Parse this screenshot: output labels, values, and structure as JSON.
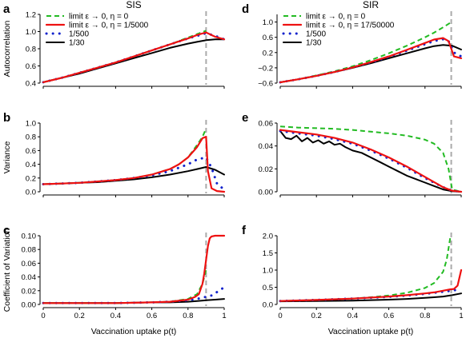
{
  "column_titles": [
    "SIS",
    "SIR"
  ],
  "xlabel": "Vaccination uptake p(t)",
  "colors": {
    "limit": "#22bb22",
    "eta_small": "#ee1111",
    "eta_500": "#1122cc",
    "eta_30": "#000000",
    "vline": "#aaaaaa"
  },
  "chart_data": [
    {
      "panel": "a",
      "type": "line",
      "xlim": [
        0,
        1
      ],
      "ylim": [
        0.4,
        1.2
      ],
      "ylabel": "Autocorrelation",
      "xticks": [
        0,
        0.2,
        0.4,
        0.6,
        0.8,
        1
      ],
      "xtick_labels": [
        "",
        "",
        "",
        "",
        "",
        ""
      ],
      "yticks": [
        0.4,
        0.6,
        0.8,
        1.0,
        1.2
      ],
      "ytick_labels": [
        "0.4",
        "0.6",
        "0.8",
        "1.0",
        "1.2"
      ],
      "vline": 0.9,
      "legend": {
        "position": "top-left",
        "labels": [
          "limit ε → 0, η = 0",
          "limit ε → 0, η = 1/5000",
          "1/500",
          "1/30"
        ]
      },
      "series": [
        {
          "name": "limit ε → 0, η = 0",
          "style": "limit",
          "x": [
            0,
            0.1,
            0.2,
            0.3,
            0.4,
            0.5,
            0.6,
            0.7,
            0.8,
            0.85,
            0.9
          ],
          "y": [
            0.41,
            0.46,
            0.52,
            0.58,
            0.64,
            0.71,
            0.78,
            0.85,
            0.93,
            0.97,
            1.01
          ]
        },
        {
          "name": "limit ε → 0, η = 1/5000",
          "style": "eta_small",
          "x": [
            0,
            0.1,
            0.2,
            0.3,
            0.4,
            0.5,
            0.6,
            0.7,
            0.8,
            0.85,
            0.9,
            0.95,
            1
          ],
          "y": [
            0.41,
            0.46,
            0.52,
            0.58,
            0.64,
            0.71,
            0.78,
            0.85,
            0.92,
            0.96,
            0.99,
            0.94,
            0.91
          ]
        },
        {
          "name": "1/500",
          "style": "eta_500",
          "x": [
            0,
            0.1,
            0.2,
            0.3,
            0.4,
            0.5,
            0.6,
            0.7,
            0.8,
            0.85,
            0.9,
            0.95,
            1
          ],
          "y": [
            0.41,
            0.46,
            0.52,
            0.58,
            0.64,
            0.71,
            0.78,
            0.85,
            0.92,
            0.95,
            0.98,
            0.95,
            0.91
          ]
        },
        {
          "name": "1/30",
          "style": "eta_30",
          "x": [
            0,
            0.1,
            0.2,
            0.3,
            0.4,
            0.5,
            0.6,
            0.7,
            0.8,
            0.85,
            0.9,
            0.95,
            1
          ],
          "y": [
            0.41,
            0.46,
            0.51,
            0.57,
            0.63,
            0.69,
            0.75,
            0.81,
            0.86,
            0.88,
            0.9,
            0.91,
            0.91
          ]
        }
      ]
    },
    {
      "panel": "d",
      "type": "line",
      "xlim": [
        0,
        1
      ],
      "ylim": [
        -0.6,
        1.2
      ],
      "ylabel": "",
      "xticks": [
        0,
        0.2,
        0.4,
        0.6,
        0.8,
        1
      ],
      "xtick_labels": [
        "",
        "",
        "",
        "",
        "",
        ""
      ],
      "yticks": [
        -0.6,
        -0.2,
        0.2,
        0.6,
        1.0
      ],
      "ytick_labels": [
        "−0.6",
        "−0.2",
        "0.2",
        "0.6",
        "1.0"
      ],
      "vline": 0.945,
      "legend": {
        "position": "top-left",
        "labels": [
          "limit ε → 0, η = 0",
          "limit ε → 0, η = 17/50000",
          "1/500",
          "1/30"
        ]
      },
      "series": [
        {
          "name": "limit ε → 0, η = 0",
          "style": "limit",
          "x": [
            0,
            0.1,
            0.2,
            0.3,
            0.4,
            0.5,
            0.6,
            0.7,
            0.8,
            0.85,
            0.9,
            0.94
          ],
          "y": [
            -0.58,
            -0.5,
            -0.4,
            -0.29,
            -0.16,
            0.0,
            0.18,
            0.38,
            0.6,
            0.72,
            0.86,
            0.98
          ]
        },
        {
          "name": "limit ε → 0, η = 17/50000",
          "style": "eta_small",
          "x": [
            0,
            0.1,
            0.2,
            0.3,
            0.4,
            0.5,
            0.6,
            0.7,
            0.8,
            0.85,
            0.9,
            0.93,
            0.96,
            1
          ],
          "y": [
            -0.58,
            -0.5,
            -0.41,
            -0.31,
            -0.19,
            -0.05,
            0.1,
            0.27,
            0.45,
            0.54,
            0.58,
            0.5,
            0.1,
            0.05
          ]
        },
        {
          "name": "1/500",
          "style": "eta_500",
          "x": [
            0,
            0.1,
            0.2,
            0.3,
            0.4,
            0.5,
            0.6,
            0.7,
            0.8,
            0.85,
            0.9,
            0.93,
            0.96,
            1
          ],
          "y": [
            -0.58,
            -0.5,
            -0.41,
            -0.31,
            -0.19,
            -0.06,
            0.09,
            0.25,
            0.42,
            0.5,
            0.55,
            0.5,
            0.2,
            0.1
          ]
        },
        {
          "name": "1/30",
          "style": "eta_30",
          "x": [
            0,
            0.1,
            0.2,
            0.3,
            0.4,
            0.5,
            0.6,
            0.7,
            0.8,
            0.85,
            0.9,
            0.95,
            1
          ],
          "y": [
            -0.58,
            -0.5,
            -0.41,
            -0.31,
            -0.2,
            -0.08,
            0.05,
            0.18,
            0.31,
            0.37,
            0.4,
            0.38,
            0.28
          ]
        }
      ]
    },
    {
      "panel": "b",
      "type": "line",
      "xlim": [
        0,
        1
      ],
      "ylim": [
        0,
        1
      ],
      "ylabel": "Variance",
      "xticks": [
        0,
        0.2,
        0.4,
        0.6,
        0.8,
        1
      ],
      "xtick_labels": [
        "",
        "",
        "",
        "",
        "",
        ""
      ],
      "yticks": [
        0,
        0.2,
        0.4,
        0.6,
        0.8,
        1.0
      ],
      "ytick_labels": [
        "0.0",
        "0.2",
        "0.4",
        "0.6",
        "0.8",
        "1.0"
      ],
      "vline": 0.9,
      "series": [
        {
          "name": "limit ε → 0, η = 0",
          "style": "limit",
          "x": [
            0,
            0.1,
            0.2,
            0.3,
            0.4,
            0.5,
            0.6,
            0.7,
            0.75,
            0.8,
            0.85,
            0.88,
            0.9
          ],
          "y": [
            0.11,
            0.12,
            0.13,
            0.15,
            0.17,
            0.2,
            0.25,
            0.33,
            0.4,
            0.5,
            0.68,
            0.8,
            0.92
          ]
        },
        {
          "name": "limit ε → 0, η = 1/5000",
          "style": "eta_small",
          "x": [
            0,
            0.1,
            0.2,
            0.3,
            0.4,
            0.5,
            0.6,
            0.7,
            0.75,
            0.8,
            0.85,
            0.88,
            0.9,
            0.91,
            0.93,
            0.96,
            1
          ],
          "y": [
            0.11,
            0.12,
            0.13,
            0.15,
            0.17,
            0.2,
            0.25,
            0.33,
            0.4,
            0.5,
            0.65,
            0.78,
            0.8,
            0.3,
            0.05,
            0.01,
            0.0
          ]
        },
        {
          "name": "1/500",
          "style": "eta_500",
          "x": [
            0,
            0.1,
            0.2,
            0.3,
            0.4,
            0.5,
            0.6,
            0.7,
            0.8,
            0.85,
            0.9,
            0.93,
            0.96,
            1
          ],
          "y": [
            0.11,
            0.12,
            0.13,
            0.15,
            0.17,
            0.2,
            0.24,
            0.3,
            0.4,
            0.47,
            0.5,
            0.35,
            0.12,
            0.03
          ]
        },
        {
          "name": "1/30",
          "style": "eta_30",
          "x": [
            0,
            0.1,
            0.2,
            0.3,
            0.4,
            0.5,
            0.6,
            0.7,
            0.8,
            0.85,
            0.9,
            0.95,
            1
          ],
          "y": [
            0.11,
            0.12,
            0.13,
            0.14,
            0.16,
            0.18,
            0.21,
            0.25,
            0.3,
            0.33,
            0.36,
            0.32,
            0.25
          ]
        }
      ]
    },
    {
      "panel": "e",
      "type": "line",
      "xlim": [
        0,
        1
      ],
      "ylim": [
        0,
        0.06
      ],
      "ylabel": "",
      "xticks": [
        0,
        0.2,
        0.4,
        0.6,
        0.8,
        1
      ],
      "xtick_labels": [
        "",
        "",
        "",
        "",
        "",
        ""
      ],
      "yticks": [
        0,
        0.02,
        0.04,
        0.06
      ],
      "ytick_labels": [
        "0.00",
        "0.02",
        "0.04",
        "0.06"
      ],
      "vline": 0.945,
      "series": [
        {
          "name": "limit ε → 0, η = 0",
          "style": "limit",
          "x": [
            0,
            0.1,
            0.2,
            0.3,
            0.4,
            0.5,
            0.6,
            0.7,
            0.8,
            0.85,
            0.9,
            0.93,
            0.95,
            1
          ],
          "y": [
            0.057,
            0.056,
            0.0555,
            0.055,
            0.054,
            0.0525,
            0.051,
            0.049,
            0.0455,
            0.042,
            0.034,
            0.02,
            0.002,
            0.0
          ]
        },
        {
          "name": "limit ε → 0, η = 17/50000",
          "style": "eta_small",
          "x": [
            0,
            0.1,
            0.2,
            0.3,
            0.4,
            0.5,
            0.6,
            0.7,
            0.8,
            0.9,
            0.95,
            1
          ],
          "y": [
            0.054,
            0.052,
            0.05,
            0.047,
            0.043,
            0.037,
            0.03,
            0.022,
            0.013,
            0.004,
            0.001,
            0.0
          ]
        },
        {
          "name": "1/500",
          "style": "eta_500",
          "x": [
            0,
            0.1,
            0.2,
            0.3,
            0.4,
            0.5,
            0.6,
            0.7,
            0.8,
            0.9,
            0.95,
            1
          ],
          "y": [
            0.053,
            0.051,
            0.049,
            0.046,
            0.042,
            0.036,
            0.029,
            0.021,
            0.012,
            0.004,
            0.001,
            0.0
          ]
        },
        {
          "name": "1/30",
          "style": "eta_30",
          "x": [
            0,
            0.03,
            0.06,
            0.09,
            0.12,
            0.15,
            0.18,
            0.21,
            0.24,
            0.27,
            0.3,
            0.33,
            0.36,
            0.4,
            0.45,
            0.5,
            0.55,
            0.6,
            0.65,
            0.7,
            0.75,
            0.8,
            0.85,
            0.9,
            0.95,
            1
          ],
          "y": [
            0.053,
            0.047,
            0.046,
            0.049,
            0.044,
            0.047,
            0.043,
            0.045,
            0.042,
            0.044,
            0.041,
            0.042,
            0.039,
            0.036,
            0.034,
            0.03,
            0.026,
            0.022,
            0.018,
            0.014,
            0.011,
            0.008,
            0.005,
            0.002,
            0.0005,
            0.0
          ]
        }
      ]
    },
    {
      "panel": "c",
      "type": "line",
      "xlim": [
        0,
        1
      ],
      "ylim": [
        0,
        0.1
      ],
      "ylabel": "Coefficient of Variation",
      "xticks": [
        0,
        0.2,
        0.4,
        0.6,
        0.8,
        1
      ],
      "xtick_labels": [
        "0",
        "0.2",
        "0.4",
        "0.6",
        "0.8",
        "1"
      ],
      "yticks": [
        0,
        0.02,
        0.04,
        0.06,
        0.08,
        0.1
      ],
      "ytick_labels": [
        "0.00",
        "0.02",
        "0.04",
        "0.06",
        "0.08",
        "0.10"
      ],
      "vline": 0.9,
      "series": [
        {
          "name": "limit ε → 0, η = 0",
          "style": "limit",
          "x": [
            0,
            0.2,
            0.4,
            0.6,
            0.7,
            0.8,
            0.85,
            0.88,
            0.9
          ],
          "y": [
            0.002,
            0.002,
            0.002,
            0.003,
            0.004,
            0.008,
            0.015,
            0.03,
            0.05
          ]
        },
        {
          "name": "limit ε → 0, η = 1/5000",
          "style": "eta_small",
          "x": [
            0,
            0.2,
            0.4,
            0.6,
            0.7,
            0.8,
            0.84,
            0.86,
            0.88,
            0.89,
            0.9,
            0.91,
            0.92,
            0.93,
            0.95,
            1
          ],
          "y": [
            0.002,
            0.002,
            0.002,
            0.003,
            0.004,
            0.007,
            0.011,
            0.015,
            0.03,
            0.045,
            0.065,
            0.085,
            0.096,
            0.099,
            0.1,
            0.1
          ]
        },
        {
          "name": "1/500",
          "style": "eta_500",
          "x": [
            0,
            0.2,
            0.4,
            0.6,
            0.7,
            0.8,
            0.85,
            0.88,
            0.9,
            0.93,
            0.96,
            1
          ],
          "y": [
            0.002,
            0.002,
            0.002,
            0.003,
            0.004,
            0.006,
            0.008,
            0.01,
            0.011,
            0.013,
            0.018,
            0.025
          ]
        },
        {
          "name": "1/30",
          "style": "eta_30",
          "x": [
            0,
            0.2,
            0.4,
            0.6,
            0.7,
            0.8,
            0.85,
            0.9,
            0.95,
            1
          ],
          "y": [
            0.002,
            0.002,
            0.002,
            0.003,
            0.003,
            0.004,
            0.005,
            0.006,
            0.007,
            0.008
          ]
        }
      ]
    },
    {
      "panel": "f",
      "type": "line",
      "xlim": [
        0,
        1
      ],
      "ylim": [
        0,
        2
      ],
      "ylabel": "",
      "xticks": [
        0,
        0.2,
        0.4,
        0.6,
        0.8,
        1
      ],
      "xtick_labels": [
        "0",
        "0.2",
        "0.4",
        "0.6",
        "0.8",
        "1"
      ],
      "yticks": [
        0,
        0.5,
        1.0,
        1.5,
        2.0
      ],
      "ytick_labels": [
        "0.0",
        "0.5",
        "1.0",
        "1.5",
        "2.0"
      ],
      "vline": 0.945,
      "series": [
        {
          "name": "limit ε → 0, η = 0",
          "style": "limit",
          "x": [
            0,
            0.2,
            0.4,
            0.5,
            0.6,
            0.7,
            0.8,
            0.85,
            0.9,
            0.92,
            0.94
          ],
          "y": [
            0.1,
            0.13,
            0.17,
            0.21,
            0.26,
            0.34,
            0.48,
            0.62,
            0.95,
            1.3,
            1.95
          ]
        },
        {
          "name": "limit ε → 0, η = 17/50000",
          "style": "eta_small",
          "x": [
            0,
            0.2,
            0.4,
            0.6,
            0.7,
            0.8,
            0.85,
            0.9,
            0.94,
            0.96,
            0.98,
            1
          ],
          "y": [
            0.1,
            0.13,
            0.17,
            0.23,
            0.27,
            0.32,
            0.35,
            0.4,
            0.44,
            0.45,
            0.55,
            1.0
          ]
        },
        {
          "name": "1/500",
          "style": "eta_500",
          "x": [
            0,
            0.2,
            0.4,
            0.6,
            0.7,
            0.8,
            0.85,
            0.9,
            0.95,
            1
          ],
          "y": [
            0.1,
            0.13,
            0.17,
            0.22,
            0.26,
            0.31,
            0.34,
            0.37,
            0.4,
            0.45
          ]
        },
        {
          "name": "1/30",
          "style": "eta_30",
          "x": [
            0,
            0.2,
            0.4,
            0.6,
            0.7,
            0.8,
            0.85,
            0.9,
            0.95,
            1
          ],
          "y": [
            0.09,
            0.1,
            0.11,
            0.14,
            0.16,
            0.19,
            0.21,
            0.23,
            0.27,
            0.32
          ]
        }
      ]
    }
  ]
}
